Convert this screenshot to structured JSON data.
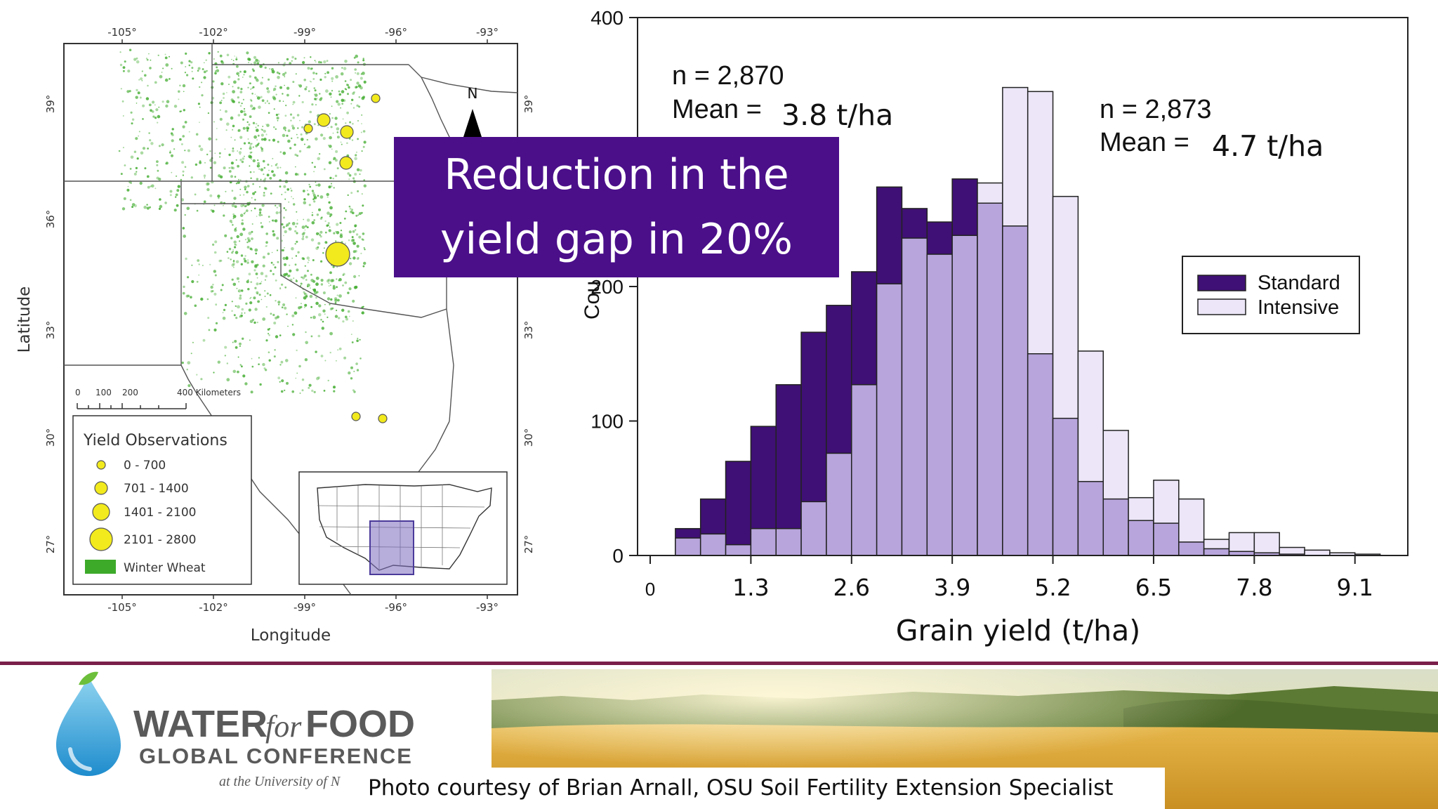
{
  "overlay": {
    "line1": "Reduction in the",
    "line2": "yield gap in 20%"
  },
  "map": {
    "top_ticks": [
      "-105°",
      "-102°",
      "-99°",
      "-96°",
      "-93°"
    ],
    "bottom_ticks": [
      "-105°",
      "-102°",
      "-99°",
      "-96°",
      "-93°"
    ],
    "left_ticks": [
      "39°",
      "36°",
      "33°",
      "30°",
      "27°"
    ],
    "right_ticks": [
      "39°",
      "33°",
      "30°",
      "27°"
    ],
    "xlabel": "Longitude",
    "ylabel": "Latitude",
    "north": "N",
    "scale_labels": [
      "0",
      "100",
      "200",
      "400 Kilometers"
    ],
    "legend_title": "Yield Observations",
    "legend_items": [
      "0 - 700",
      "701 - 1400",
      "1401 - 2100",
      "2101 - 2800",
      "Winter Wheat"
    ],
    "colors": {
      "yield_dot": "#f2ea1c",
      "wheat": "#3daa2a",
      "inset_highlight": "#7b6cc0"
    }
  },
  "chart_data": {
    "type": "bar",
    "xlabel": "Grain yield (t/ha)",
    "ylabel": "Count",
    "ylabel_visible": "Cou",
    "ylim": [
      0,
      400
    ],
    "xlim": [
      0,
      9.8
    ],
    "xticks": [
      "0",
      "1.3",
      "2.6",
      "3.9",
      "5.2",
      "6.5",
      "7.8",
      "9.1"
    ],
    "yticks": [
      "0",
      "100",
      "200",
      "400"
    ],
    "grid": false,
    "legend_position": "right",
    "bin_width": 0.325,
    "bin_starts": [
      0.325,
      0.65,
      0.975,
      1.3,
      1.625,
      1.95,
      2.275,
      2.6,
      2.925,
      3.25,
      3.575,
      3.9,
      4.225,
      4.55,
      4.875,
      5.2,
      5.525,
      5.85,
      6.175,
      6.5,
      6.825,
      7.15,
      7.475,
      7.8,
      8.125,
      8.45,
      8.775,
      9.1
    ],
    "series": [
      {
        "name": "Standard",
        "color": "#3f1075",
        "values": [
          20,
          42,
          70,
          96,
          127,
          166,
          186,
          211,
          274,
          258,
          248,
          280,
          262,
          245,
          150,
          102,
          55,
          42,
          26,
          24,
          10,
          5,
          3,
          2,
          1,
          0,
          0,
          0
        ]
      },
      {
        "name": "Intensive",
        "color": "#ece6f8",
        "values": [
          13,
          16,
          8,
          20,
          20,
          40,
          76,
          127,
          202,
          236,
          224,
          238,
          277,
          348,
          345,
          267,
          152,
          93,
          43,
          56,
          42,
          12,
          17,
          17,
          6,
          4,
          2,
          1
        ]
      }
    ],
    "overlap_color": "#b8a5dc",
    "annotations": [
      {
        "n": "n = 2,870",
        "mean_label": "Mean =",
        "mean_value": "3.8 t/ha"
      },
      {
        "n": "n = 2,873",
        "mean_label": "Mean =",
        "mean_value": "4.7 t/ha"
      }
    ]
  },
  "footer": {
    "logo_line1a": "WATER",
    "logo_line1b": "for",
    "logo_line1c": "FOOD",
    "logo_line2": "GLOBAL CONFERENCE",
    "logo_line3": "at the University of N",
    "photo_credit": "Photo courtesy of Brian Arnall, OSU Soil Fertility Extension Specialist"
  }
}
